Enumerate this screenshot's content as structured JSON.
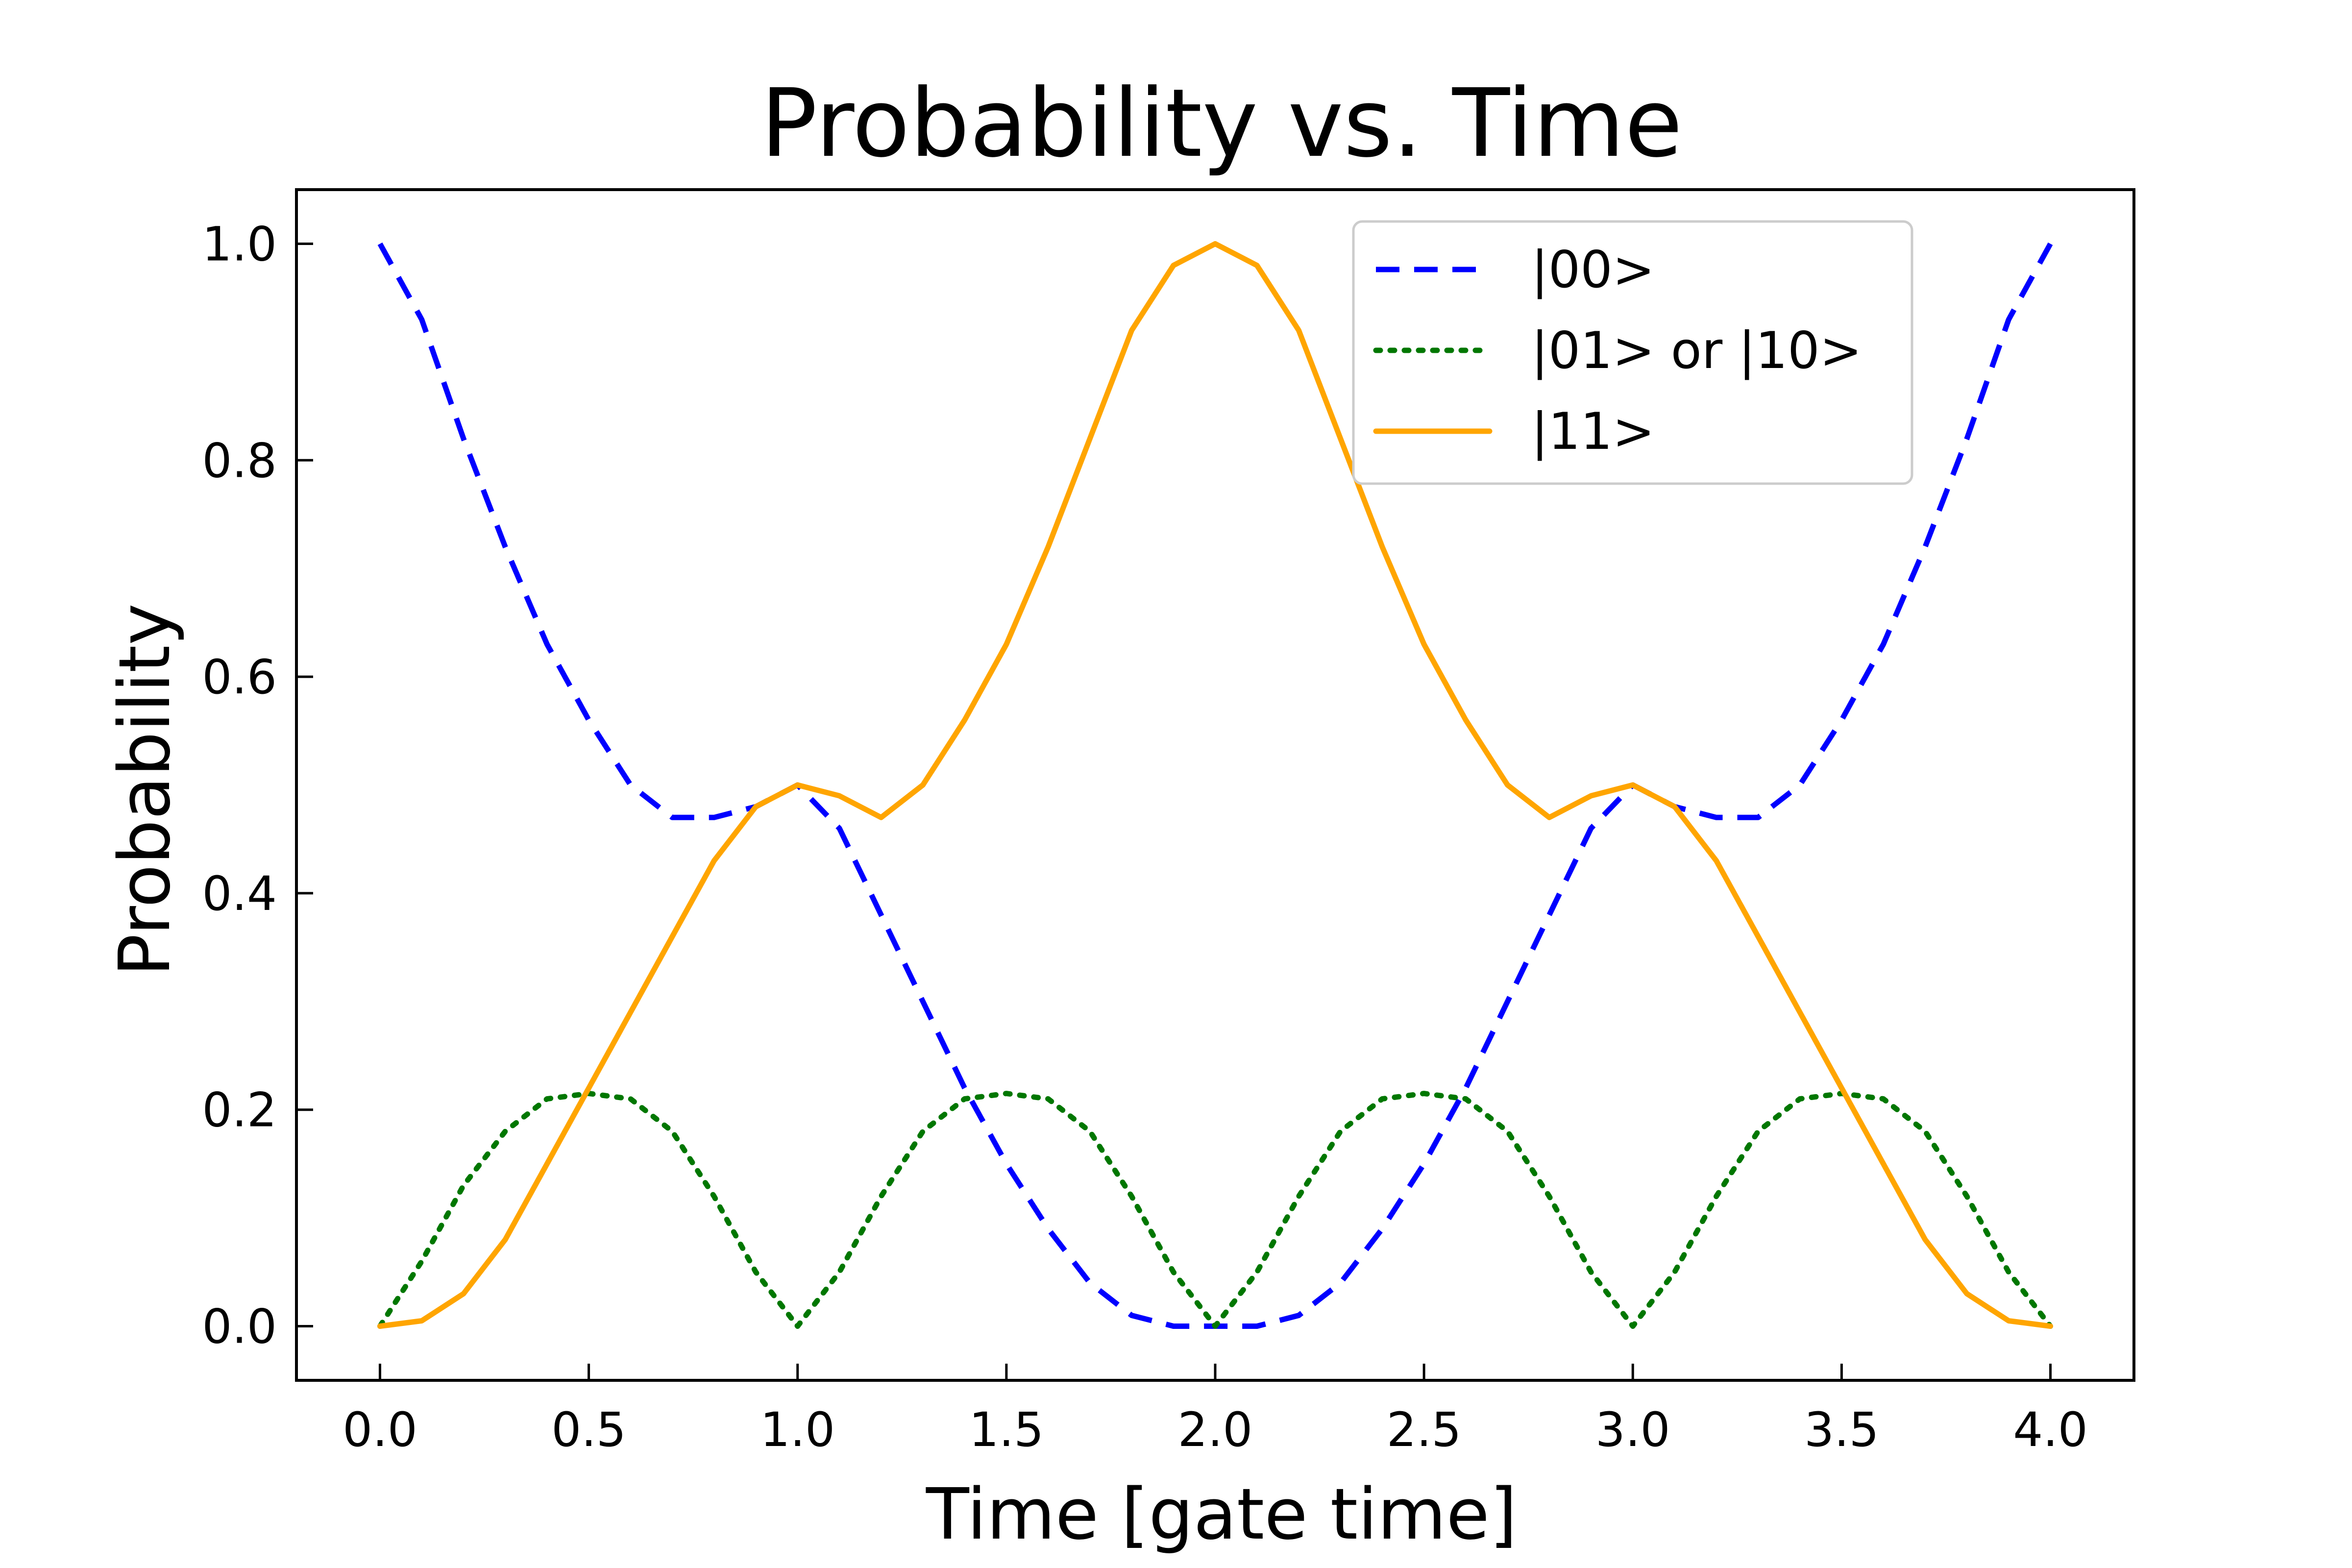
{
  "chart_data": {
    "type": "line",
    "title": "Probability vs. Time",
    "xlabel": "Time [gate time]",
    "ylabel": "Probability",
    "xlim": [
      -0.2,
      4.2
    ],
    "ylim": [
      -0.05,
      1.05
    ],
    "xticks": [
      0.0,
      0.5,
      1.0,
      1.5,
      2.0,
      2.5,
      3.0,
      3.5,
      4.0
    ],
    "xtick_labels": [
      "0.0",
      "0.5",
      "1.0",
      "1.5",
      "2.0",
      "2.5",
      "3.0",
      "3.5",
      "4.0"
    ],
    "yticks": [
      0.0,
      0.2,
      0.4,
      0.6,
      0.8,
      1.0
    ],
    "ytick_labels": [
      "0.0",
      "0.2",
      "0.4",
      "0.6",
      "0.8",
      "1.0"
    ],
    "grid": false,
    "legend_position": "top-right",
    "x": [
      0.0,
      0.1,
      0.2,
      0.3,
      0.4,
      0.5,
      0.6,
      0.7,
      0.8,
      0.9,
      1.0,
      1.1,
      1.2,
      1.3,
      1.4,
      1.5,
      1.6,
      1.7,
      1.8,
      1.9,
      2.0,
      2.1,
      2.2,
      2.3,
      2.4,
      2.5,
      2.6,
      2.7,
      2.8,
      2.9,
      3.0,
      3.1,
      3.2,
      3.3,
      3.4,
      3.5,
      3.6,
      3.7,
      3.8,
      3.9,
      4.0
    ],
    "series": [
      {
        "name": "|00>",
        "color": "#0000ff",
        "style": "dashed",
        "values": [
          1.0,
          0.93,
          0.82,
          0.72,
          0.63,
          0.56,
          0.5,
          0.47,
          0.47,
          0.48,
          0.5,
          0.46,
          0.38,
          0.3,
          0.22,
          0.15,
          0.09,
          0.04,
          0.01,
          0.0,
          0.0,
          0.0,
          0.01,
          0.04,
          0.09,
          0.15,
          0.22,
          0.3,
          0.38,
          0.46,
          0.5,
          0.48,
          0.47,
          0.47,
          0.5,
          0.56,
          0.63,
          0.72,
          0.82,
          0.93,
          1.0
        ]
      },
      {
        "name": "|01> or |10>",
        "color": "#007700",
        "style": "dotted",
        "values": [
          0.0,
          0.06,
          0.13,
          0.18,
          0.21,
          0.215,
          0.21,
          0.18,
          0.12,
          0.05,
          0.0,
          0.05,
          0.12,
          0.18,
          0.21,
          0.215,
          0.21,
          0.18,
          0.12,
          0.05,
          0.0,
          0.05,
          0.12,
          0.18,
          0.21,
          0.215,
          0.21,
          0.18,
          0.12,
          0.05,
          0.0,
          0.05,
          0.12,
          0.18,
          0.21,
          0.215,
          0.21,
          0.18,
          0.12,
          0.05,
          0.0
        ]
      },
      {
        "name": "|11>",
        "color": "#ffa500",
        "style": "solid",
        "values": [
          0.0,
          0.005,
          0.03,
          0.08,
          0.15,
          0.22,
          0.29,
          0.36,
          0.43,
          0.48,
          0.5,
          0.49,
          0.47,
          0.5,
          0.56,
          0.63,
          0.72,
          0.82,
          0.92,
          0.98,
          1.0,
          0.98,
          0.92,
          0.82,
          0.72,
          0.63,
          0.56,
          0.5,
          0.47,
          0.49,
          0.5,
          0.48,
          0.43,
          0.36,
          0.29,
          0.22,
          0.15,
          0.08,
          0.03,
          0.005,
          0.0
        ]
      }
    ]
  }
}
